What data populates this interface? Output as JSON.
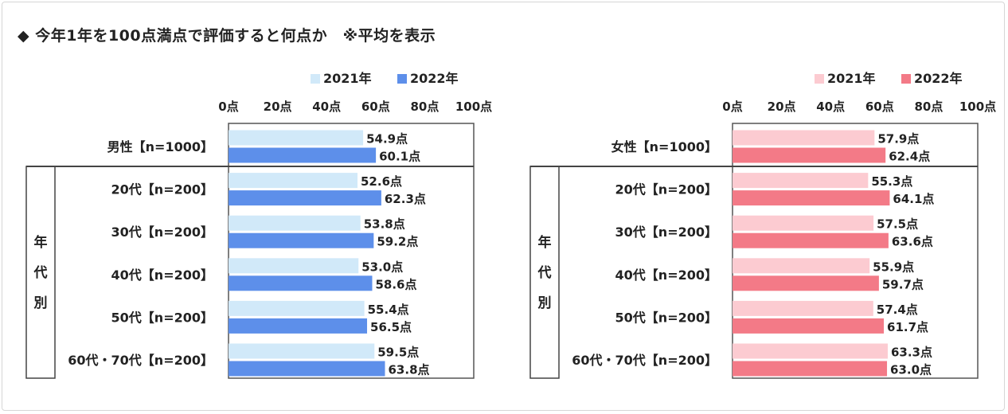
{
  "title": "◆ 今年1年を100点満点で評価すると何点か　※平均を表示",
  "chart_data": [
    {
      "type": "bar",
      "orientation": "horizontal",
      "panel": "male",
      "legend": [
        "2021年",
        "2022年"
      ],
      "legend_position": "top",
      "xlim": [
        0,
        100
      ],
      "tick_labels": [
        "0点",
        "20点",
        "40点",
        "60点",
        "80点",
        "100点"
      ],
      "group_label": "年代別",
      "categories": [
        "男性【n=1000】",
        "20代【n=200】",
        "30代【n=200】",
        "40代【n=200】",
        "50代【n=200】",
        "60代・70代【n=200】"
      ],
      "series": [
        {
          "name": "2021年",
          "color": "#d1e9f9",
          "values": [
            54.9,
            52.6,
            53.8,
            53.0,
            55.4,
            59.5
          ],
          "labels": [
            "54.9点",
            "52.6点",
            "53.8点",
            "53.0点",
            "55.4点",
            "59.5点"
          ]
        },
        {
          "name": "2022年",
          "color": "#5d8fea",
          "values": [
            60.1,
            62.3,
            59.2,
            58.6,
            56.5,
            63.8
          ],
          "labels": [
            "60.1点",
            "62.3点",
            "59.2点",
            "58.6点",
            "56.5点",
            "63.8点"
          ]
        }
      ]
    },
    {
      "type": "bar",
      "orientation": "horizontal",
      "panel": "female",
      "legend": [
        "2021年",
        "2022年"
      ],
      "legend_position": "top",
      "xlim": [
        0,
        100
      ],
      "tick_labels": [
        "0点",
        "20点",
        "40点",
        "60点",
        "80点",
        "100点"
      ],
      "group_label": "年代別",
      "categories": [
        "女性【n=1000】",
        "20代【n=200】",
        "30代【n=200】",
        "40代【n=200】",
        "50代【n=200】",
        "60代・70代【n=200】"
      ],
      "series": [
        {
          "name": "2021年",
          "color": "#fccbd1",
          "values": [
            57.9,
            55.3,
            57.5,
            55.9,
            57.4,
            63.3
          ],
          "labels": [
            "57.9点",
            "55.3点",
            "57.5点",
            "55.9点",
            "57.4点",
            "63.3点"
          ]
        },
        {
          "name": "2022年",
          "color": "#f37a87",
          "values": [
            62.4,
            64.1,
            63.6,
            59.7,
            61.7,
            63.0
          ],
          "labels": [
            "62.4点",
            "64.1点",
            "63.6点",
            "59.7点",
            "61.7点",
            "63.0点"
          ]
        }
      ]
    }
  ]
}
